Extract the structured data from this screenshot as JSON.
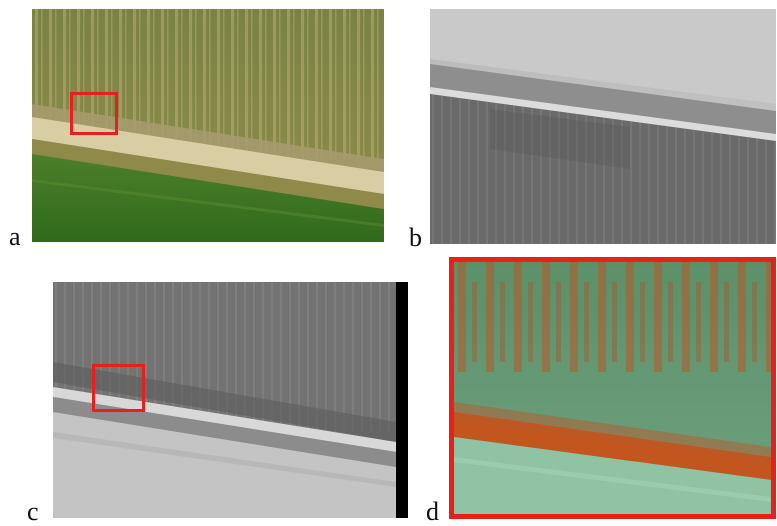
{
  "panels": [
    {
      "label": "a",
      "kind": "rgb-aerial",
      "highlight_color": "#e8201c"
    },
    {
      "label": "b",
      "kind": "grayscale-aerial"
    },
    {
      "label": "c",
      "kind": "grayscale-aerial",
      "highlight_color": "#e8201c"
    },
    {
      "label": "d",
      "kind": "false-color-zoom",
      "border_color": "#e8201c"
    }
  ],
  "colors": {
    "highlight": "#e8201c",
    "crop_rows_green": "#6f7c3c",
    "lower_field_green": "#3f7a25",
    "dirt_road": "#cdbf94",
    "gray_field": "#6c6c6c",
    "false_color_green": "#5e9a78",
    "false_color_red": "#c2561e"
  }
}
